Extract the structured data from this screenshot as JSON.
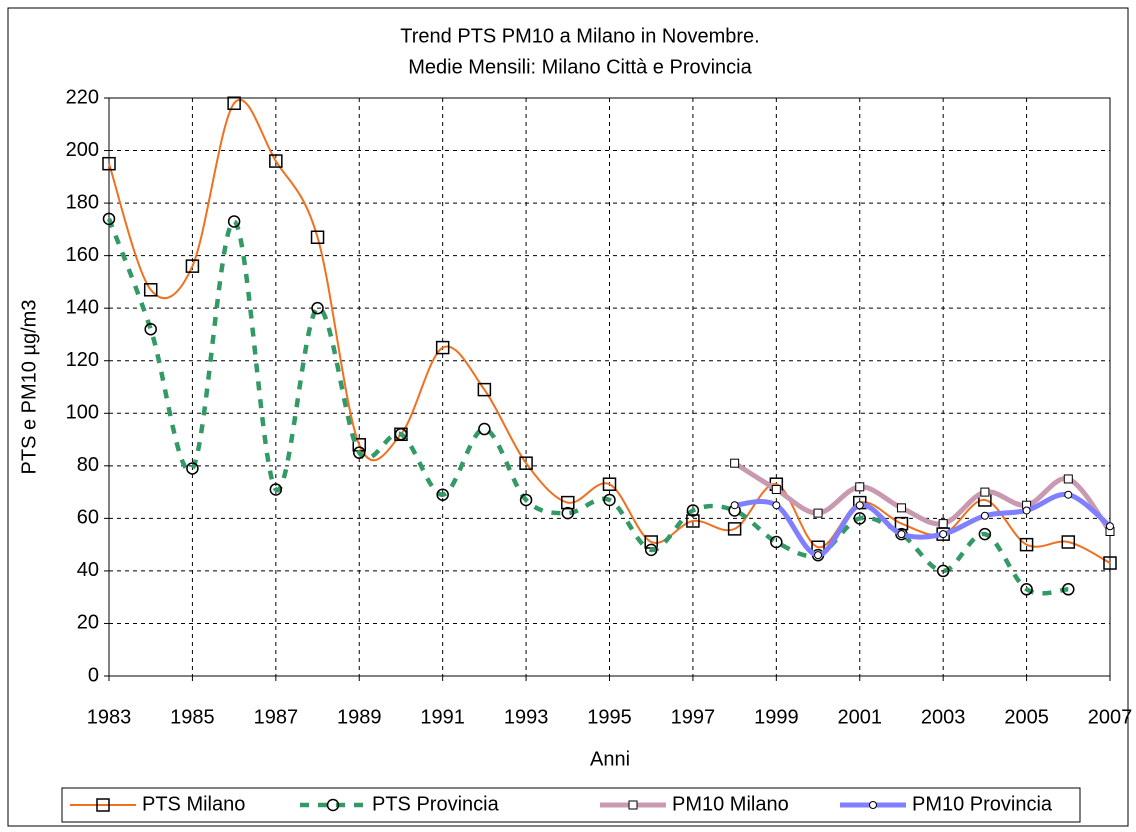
{
  "chart_data": {
    "type": "line",
    "title": "Trend PTS PM10 a Milano in Novembre.",
    "subtitle": "Medie Mensili: Milano Città e Provincia",
    "x_label": "Anni",
    "y_label": "PTS e PM10  µg/m3",
    "x": [
      1983,
      1984,
      1985,
      1986,
      1987,
      1988,
      1989,
      1990,
      1991,
      1992,
      1993,
      1994,
      1995,
      1996,
      1997,
      1998,
      1999,
      2000,
      2001,
      2002,
      2003,
      2004,
      2005,
      2006,
      2007
    ],
    "xlim": [
      1983,
      2007
    ],
    "xticks": [
      1983,
      1985,
      1987,
      1989,
      1991,
      1993,
      1995,
      1997,
      1999,
      2001,
      2003,
      2005,
      2007
    ],
    "ylim": [
      0,
      220
    ],
    "yticks": [
      0,
      20,
      40,
      60,
      80,
      100,
      120,
      140,
      160,
      180,
      200,
      220
    ],
    "grid": true,
    "legend": "bottom",
    "series": [
      {
        "name": "PTS Milano",
        "color": "#f07020",
        "marker": "square",
        "dashed": false,
        "values": [
          195,
          147,
          156,
          218,
          196,
          167,
          88,
          92,
          125,
          109,
          81,
          66,
          73,
          51,
          59,
          56,
          73,
          49,
          66,
          58,
          54,
          67,
          50,
          51,
          43
        ]
      },
      {
        "name": "PTS Provincia",
        "color": "#339966",
        "marker": "circle",
        "dashed": true,
        "values": [
          174,
          132,
          79,
          173,
          71,
          140,
          85,
          92,
          69,
          94,
          67,
          62,
          67,
          48,
          63,
          63,
          51,
          46,
          60,
          54,
          40,
          54,
          33,
          33,
          null
        ]
      },
      {
        "name": "PM10 Milano",
        "color": "#c899b0",
        "marker": "small-square",
        "dashed": false,
        "values": [
          null,
          null,
          null,
          null,
          null,
          null,
          null,
          null,
          null,
          null,
          null,
          null,
          null,
          null,
          null,
          81,
          71,
          62,
          72,
          64,
          58,
          70,
          65,
          75,
          55
        ]
      },
      {
        "name": "PM10 Provincia",
        "color": "#7f7fff",
        "marker": "small-circle",
        "dashed": false,
        "values": [
          null,
          null,
          null,
          null,
          null,
          null,
          null,
          null,
          null,
          null,
          null,
          null,
          null,
          null,
          null,
          65,
          65,
          46,
          65,
          54,
          54,
          61,
          63,
          69,
          57
        ]
      }
    ]
  }
}
